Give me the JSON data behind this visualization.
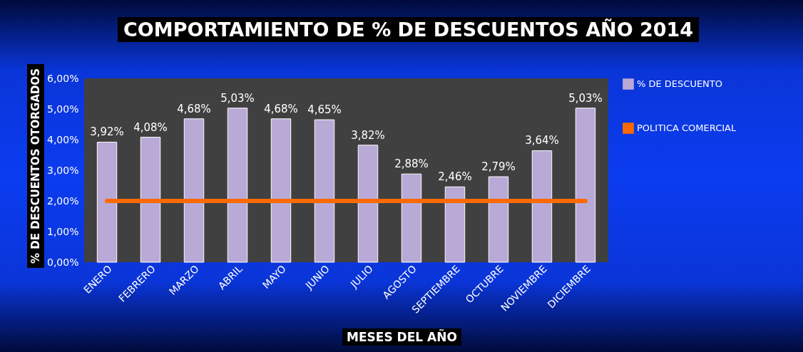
{
  "chart_data": {
    "type": "bar",
    "title": "COMPORTAMIENTO DE % DE DESCUENTOS  AÑO 2014",
    "xlabel": "MESES DEL AÑO",
    "ylabel": "% DE DESCUENTOS OTORGADOS",
    "categories": [
      "ENERO",
      "FEBRERO",
      "MARZO",
      "ABRIL",
      "MAYO",
      "JUNIO",
      "JULIO",
      "AGOSTO",
      "SEPTIEMBRE",
      "OCTUBRE",
      "NOVIEMBRE",
      "DICIEMBRE"
    ],
    "series": [
      {
        "name": "% DE DESCUENTO",
        "color": "#b9a9d6",
        "values": [
          3.92,
          4.08,
          4.68,
          5.03,
          4.68,
          4.65,
          3.82,
          2.88,
          2.46,
          2.79,
          3.64,
          5.03
        ],
        "value_labels": [
          "3,92%",
          "4,08%",
          "4,68%",
          "5,03%",
          "4,68%",
          "4,65%",
          "3,82%",
          "2,88%",
          "2,46%",
          "2,79%",
          "3,64%",
          "5,03%"
        ]
      },
      {
        "name": "POLITICA COMERCIAL",
        "type": "line",
        "color": "#ff6a00",
        "values": [
          2,
          2,
          2,
          2,
          2,
          2,
          2,
          2,
          2,
          2,
          2,
          2
        ]
      }
    ],
    "ylim": [
      0,
      6
    ],
    "yticks": [
      {
        "value": 0,
        "label": "0,00%"
      },
      {
        "value": 1,
        "label": "1,00%"
      },
      {
        "value": 2,
        "label": "2,00%"
      },
      {
        "value": 3,
        "label": "3,00%"
      },
      {
        "value": 4,
        "label": "4,00%"
      },
      {
        "value": 5,
        "label": "5,00%"
      },
      {
        "value": 6,
        "label": "6,00%"
      }
    ],
    "grid": false,
    "legend": "right"
  }
}
